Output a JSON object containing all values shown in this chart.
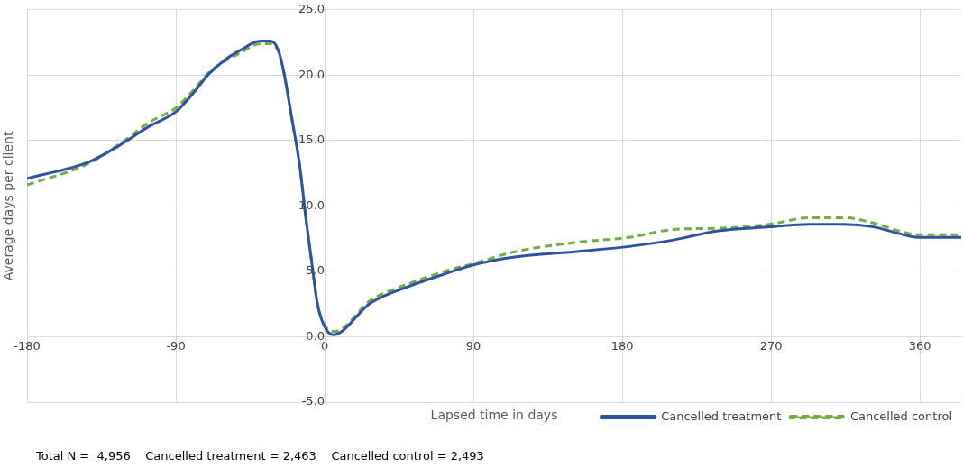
{
  "chart_data": {
    "type": "line",
    "xlabel": "Lapsed time in days",
    "ylabel": "Average days per client",
    "xlim": [
      -180,
      385
    ],
    "xticks": [
      -180,
      -90,
      0,
      90,
      180,
      270,
      360
    ],
    "ylim": [
      -5,
      25
    ],
    "yticks": [
      {
        "value": -5,
        "label": "-5.0"
      },
      {
        "value": 0,
        "label": "0.0"
      },
      {
        "value": 5,
        "label": "5.0"
      },
      {
        "value": 10,
        "label": "10.0"
      },
      {
        "value": 15,
        "label": "15.0"
      },
      {
        "value": 20,
        "label": "20.0"
      },
      {
        "value": 25,
        "label": "25.0"
      }
    ],
    "grid": true,
    "legend": "bottom right",
    "marker": "none",
    "annotations": [
      "Total N =  4,956    Cancelled treatment = 2,463    Cancelled control = 2,493"
    ],
    "series": [
      {
        "name": "Cancelled treatment",
        "color": "#2f52a0",
        "line_style": "solid",
        "x": [
          -180,
          -142,
          -124.5,
          -106,
          -90,
          -79,
          -70,
          -60,
          -51,
          -39,
          -33,
          -28,
          -24.5,
          -20,
          -15,
          -11.5,
          -7.5,
          -4.5,
          -0.5,
          5,
          28,
          52,
          75,
          90,
          115,
          151,
          184,
          211,
          238,
          269,
          293,
          314,
          332,
          347,
          359,
          385
        ],
        "values": [
          12.1,
          13.4,
          14.6,
          16.1,
          17.2,
          18.7,
          20.1,
          21.2,
          21.9,
          22.6,
          22.6,
          21.9,
          20.1,
          16.8,
          13.0,
          9.2,
          5.4,
          2.6,
          0.9,
          0.15,
          2.6,
          3.9,
          4.9,
          5.5,
          6.1,
          6.5,
          6.9,
          7.4,
          8.1,
          8.4,
          8.6,
          8.6,
          8.4,
          7.9,
          7.6,
          7.6
        ]
      },
      {
        "name": "Cancelled control",
        "color": "#70ad47",
        "line_style": "dashed",
        "x": [
          -180,
          -142,
          -124.5,
          -106,
          -90,
          -79,
          -70,
          -60,
          -51,
          -39,
          -33,
          -28,
          -24.5,
          -20,
          -15,
          -11.5,
          -7.5,
          -4.5,
          -0.5,
          6,
          28,
          52,
          75,
          90,
          115,
          151,
          184,
          211,
          238,
          269,
          293,
          314,
          332,
          347,
          359,
          385
        ],
        "values": [
          11.6,
          13.3,
          14.7,
          16.4,
          17.5,
          18.9,
          20.2,
          21.1,
          21.7,
          22.4,
          22.4,
          21.8,
          20.1,
          16.8,
          13.0,
          9.2,
          5.4,
          2.6,
          1.0,
          0.4,
          2.8,
          4.1,
          5.1,
          5.6,
          6.5,
          7.2,
          7.6,
          8.2,
          8.3,
          8.6,
          9.1,
          9.1,
          8.7,
          8.1,
          7.8,
          7.8
        ]
      }
    ]
  }
}
